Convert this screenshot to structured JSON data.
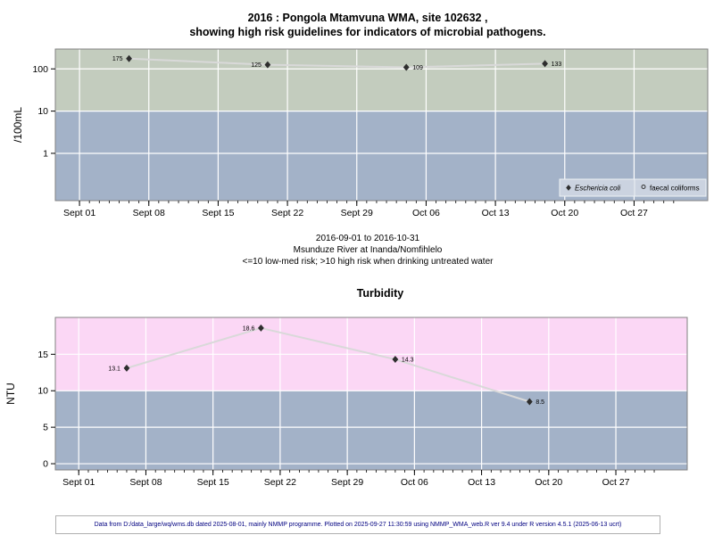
{
  "page": {
    "title_line1": "2016 : Pongola Mtamvuna WMA, site 102632 ,",
    "title_line2": "showing high risk guidelines for indicators of microbial pathogens.",
    "caption_line1": "2016-09-01 to 2016-10-31",
    "caption_line2": "Msunduze River at Inanda/Nomfihlelo",
    "caption_line3": "<=10 low-med risk; >10 high risk when drinking untreated water",
    "footer": "Data from D:/data_large/wq/wms.db dated 2025-08-01, mainly NMMP programme. Plotted on 2025-09-27 11:30:59 using NMMP_WMA_web.R ver 9.4 under R version 4.5.1 (2025-06-13 ucrt)"
  },
  "colors": {
    "zone_high_risk_microbial": "#c3ccbe",
    "zone_high_risk_turbidity": "#fbd7f5",
    "zone_low_risk": "#a3b2c8",
    "gridline": "#ffffff",
    "series_line": "#d9d9d9",
    "marker": "#2e2e2e",
    "plot_border": "#808080",
    "legend_bg": "#cbd3e0",
    "footer_text": "#000080"
  },
  "chart_data": [
    {
      "type": "line",
      "id": "microbial",
      "ylabel": "/100mL",
      "yscale": "log",
      "yticks": [
        1,
        10,
        100
      ],
      "ytick_labels": [
        "1",
        "10",
        "100"
      ],
      "ylim": [
        -1.12,
        2.47
      ],
      "xlim_days": [
        -2.44,
        63.44
      ],
      "x_total_days": 60,
      "x_major_days": [
        0,
        7,
        14,
        21,
        28,
        35,
        42,
        49,
        56
      ],
      "x_tick_labels": [
        "Sept 01",
        "Sept 08",
        "Sept 15",
        "Sept 22",
        "Sept 29",
        "Oct 06",
        "Oct 13",
        "Oct 20",
        "Oct 27"
      ],
      "date_range": "2016-09-01 to 2016-10-31",
      "risk_boundary": 10,
      "risk_note": "<=10 low-med risk; >10 high risk when drinking untreated water",
      "zone_above_color": "#c3ccbe",
      "zone_below_color": "#a3b2c8",
      "line_color": "#d9d9d9",
      "series": [
        {
          "name": "Eschericia coli",
          "marker": "filled-diamond",
          "points": [
            {
              "date": "2016-09-06",
              "day": 5,
              "value": 175,
              "label": "175",
              "label_side": "left"
            },
            {
              "date": "2016-09-20",
              "day": 19,
              "value": 125,
              "label": "125",
              "label_side": "left"
            },
            {
              "date": "2016-10-04",
              "day": 33,
              "value": 109,
              "label": "109",
              "label_side": "right"
            },
            {
              "date": "2016-10-18",
              "day": 47,
              "value": 133,
              "label": "133",
              "label_side": "right"
            }
          ]
        },
        {
          "name": "faecal coliforms",
          "marker": "open-circle",
          "points": []
        }
      ],
      "legend": [
        {
          "label": "Eschericia coli",
          "marker": "filled-diamond",
          "italic": true
        },
        {
          "label": "faecal coliforms",
          "marker": "open-circle",
          "italic": false
        }
      ]
    },
    {
      "type": "line",
      "id": "turbidity",
      "title": "Turbidity",
      "ylabel": "NTU",
      "yscale": "linear",
      "yticks": [
        0,
        5,
        10,
        15
      ],
      "ytick_labels": [
        "0",
        "5",
        "10",
        "15"
      ],
      "ylim": [
        -0.85,
        20.05
      ],
      "xlim_days": [
        -2.44,
        63.44
      ],
      "x_total_days": 60,
      "x_major_days": [
        0,
        7,
        14,
        21,
        28,
        35,
        42,
        49,
        56
      ],
      "x_tick_labels": [
        "Sept 01",
        "Sept 08",
        "Sept 15",
        "Sept 22",
        "Sept 29",
        "Oct 06",
        "Oct 13",
        "Oct 20",
        "Oct 27"
      ],
      "risk_boundary": 10,
      "zone_above_color": "#fbd7f5",
      "zone_below_color": "#a3b2c8",
      "line_color": "#d9d9d9",
      "series": [
        {
          "name": "Turbidity",
          "marker": "filled-diamond",
          "points": [
            {
              "date": "2016-09-06",
              "day": 5,
              "value": 13.1,
              "label": "13.1",
              "label_side": "left"
            },
            {
              "date": "2016-09-20",
              "day": 19,
              "value": 18.6,
              "label": "18.6",
              "label_side": "left"
            },
            {
              "date": "2016-10-04",
              "day": 33,
              "value": 14.3,
              "label": "14.3",
              "label_side": "right"
            },
            {
              "date": "2016-10-18",
              "day": 47,
              "value": 8.5,
              "label": "8.5",
              "label_side": "right"
            }
          ]
        }
      ]
    }
  ]
}
